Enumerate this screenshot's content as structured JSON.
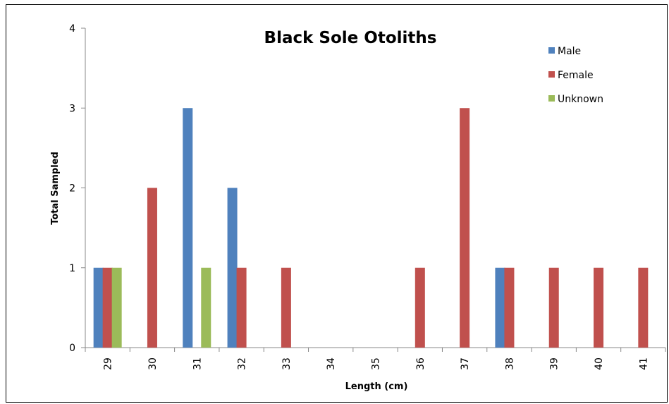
{
  "chart_data": {
    "type": "bar",
    "title": "Black Sole Otoliths",
    "xlabel": "Length (cm)",
    "ylabel": "Total Sampled",
    "categories": [
      "29",
      "30",
      "31",
      "32",
      "33",
      "34",
      "35",
      "36",
      "37",
      "38",
      "39",
      "40",
      "41"
    ],
    "ylim": [
      0,
      4
    ],
    "yticks": [
      "0",
      "1",
      "2",
      "3",
      "4"
    ],
    "grid": false,
    "legend_position": "top-right",
    "series": [
      {
        "name": "Male",
        "color": "#4F81BD",
        "values": [
          1,
          0,
          3,
          2,
          0,
          0,
          0,
          0,
          0,
          1,
          0,
          0,
          0
        ]
      },
      {
        "name": "Female",
        "color": "#C0504D",
        "values": [
          1,
          2,
          0,
          1,
          1,
          0,
          0,
          1,
          3,
          1,
          1,
          1,
          1
        ]
      },
      {
        "name": "Unknown",
        "color": "#9BBB59",
        "values": [
          1,
          0,
          1,
          0,
          0,
          0,
          0,
          0,
          0,
          0,
          0,
          0,
          0
        ]
      }
    ]
  }
}
